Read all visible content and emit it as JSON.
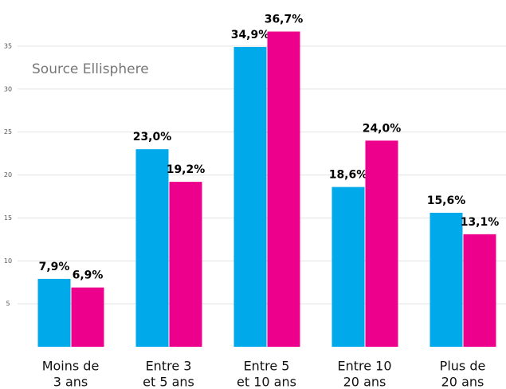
{
  "chart_data": {
    "type": "bar",
    "annotation": "Source Ellisphere",
    "categories": [
      [
        "Moins de",
        "3 ans"
      ],
      [
        "Entre 3",
        "et 5 ans"
      ],
      [
        "Entre 5",
        "et 10 ans"
      ],
      [
        "Entre 10",
        "20 ans"
      ],
      [
        "Plus de",
        "20 ans"
      ]
    ],
    "series": [
      {
        "color": "#00a9e9",
        "values": [
          7.9,
          23.0,
          34.9,
          18.6,
          15.6
        ],
        "value_labels": [
          "7,9%",
          "23,0%",
          "34,9%",
          "18,6%",
          "15,6%"
        ]
      },
      {
        "color": "#ec008c",
        "values": [
          6.9,
          19.2,
          36.7,
          24.0,
          13.1
        ],
        "value_labels": [
          "6,9%",
          "19,2%",
          "36,7%",
          "24,0%",
          "13,1%"
        ]
      }
    ],
    "ylim": [
      0,
      40
    ],
    "yticks": [
      5,
      10,
      15,
      20,
      25,
      30,
      35
    ],
    "grid": true
  }
}
